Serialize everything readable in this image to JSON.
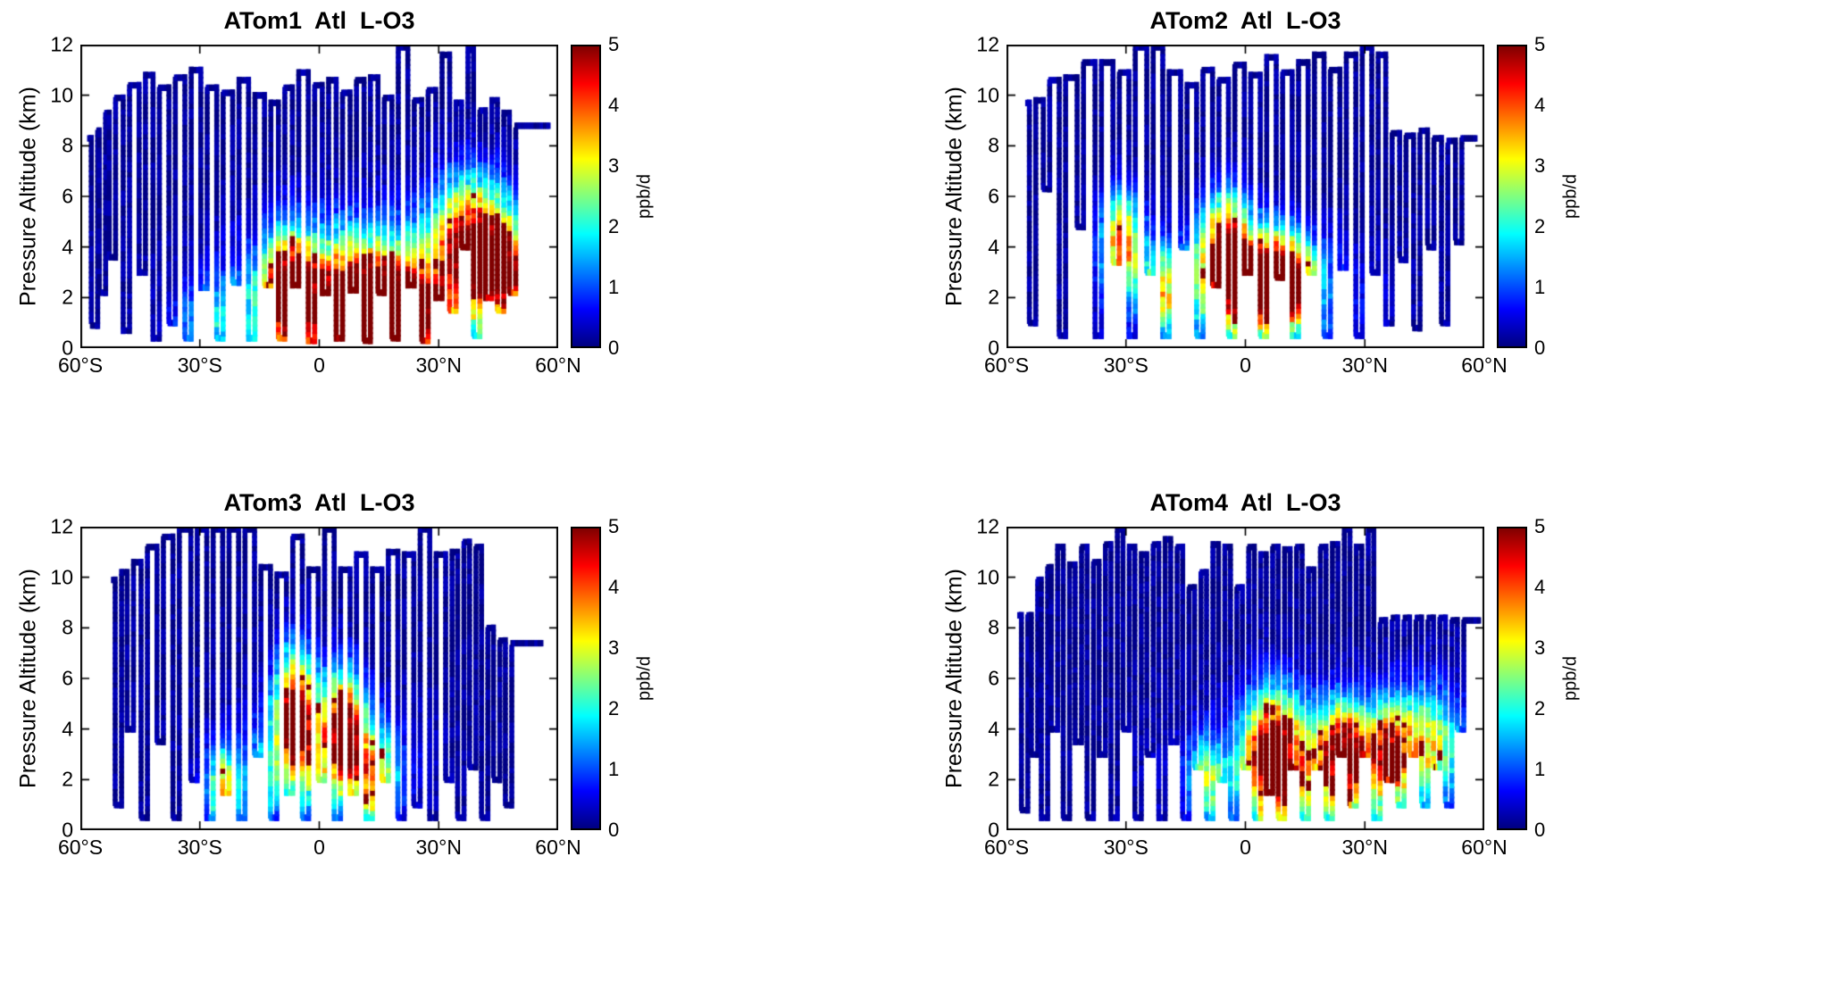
{
  "axes_note": "four curtain plots of ozone loss rate along ATom flight tracks",
  "chart_data": [
    {
      "type": "heatmap",
      "title": "ATom1  Atl  L-O3",
      "xlabel": "",
      "ylabel": "Pressure Altitude (km)",
      "xlim": [
        -60,
        60
      ],
      "ylim": [
        0,
        12
      ],
      "x_tick_values": [
        -60,
        -30,
        0,
        30,
        60
      ],
      "x_tick_labels": [
        "60°S",
        "30°S",
        "0",
        "30°N",
        "60°N"
      ],
      "y_tick_values": [
        0,
        2,
        4,
        6,
        8,
        10,
        12
      ],
      "y_tick_labels": [
        "0",
        "2",
        "4",
        "6",
        "8",
        "10",
        "12"
      ],
      "colorbar": {
        "min": 0,
        "max": 5,
        "tick_values": [
          0,
          1,
          2,
          3,
          4,
          5
        ],
        "tick_labels": [
          "0",
          "1",
          "2",
          "3",
          "4",
          "5"
        ],
        "label": "ppb/d",
        "colormap": "jet"
      },
      "flight_track": {
        "start": [
          -58,
          8.3
        ],
        "end": [
          58,
          8.9
        ],
        "dips": [
          [
            -56.5,
            0.9,
            8.6
          ],
          [
            -54.5,
            2.2,
            9.3
          ],
          [
            -52,
            3.6,
            9.9
          ],
          [
            -48.5,
            0.7,
            10.4
          ],
          [
            -44.5,
            3,
            10.8
          ],
          [
            -41,
            0.4,
            10.3
          ],
          [
            -37,
            1,
            10.7
          ],
          [
            -33,
            0.4,
            11
          ],
          [
            -29,
            2.4,
            10.3
          ],
          [
            -25,
            0.4,
            10.1
          ],
          [
            -21,
            2.6,
            10.6
          ],
          [
            -17,
            0.4,
            10
          ],
          [
            -13,
            2.5,
            9.7
          ],
          [
            -9.5,
            0.4,
            10.3
          ],
          [
            -6,
            2.5,
            10.9
          ],
          [
            -2,
            0.3,
            10.4
          ],
          [
            1.5,
            2.2,
            10.6
          ],
          [
            5,
            0.4,
            10.1
          ],
          [
            8.5,
            2.3,
            10.6
          ],
          [
            12,
            0.3,
            10.7
          ],
          [
            15.5,
            2.2,
            9.9
          ],
          [
            19,
            0.4,
            11.9
          ],
          [
            23,
            2.5,
            9.8
          ],
          [
            26.5,
            0.3,
            10.2
          ],
          [
            30,
            2,
            11.6
          ],
          [
            33.5,
            1.5,
            9.7
          ],
          [
            36.5,
            4,
            11.8
          ],
          [
            39.5,
            0.5,
            9.4
          ],
          [
            42.5,
            2,
            9.8
          ],
          [
            45.5,
            1.5,
            9.3
          ],
          [
            48.5,
            2.2,
            8.8
          ]
        ]
      },
      "value_field": {
        "base": 0.12,
        "seed": 11,
        "hotspots": [
          [
            8,
            20,
            1.4,
            2.6,
            4.4
          ],
          [
            38,
            9,
            4.2,
            2.4,
            4.6
          ],
          [
            -8,
            5,
            2.6,
            2,
            3.4
          ],
          [
            20,
            9,
            1,
            1.8,
            3.6
          ],
          [
            46,
            6,
            3,
            2,
            3.9
          ],
          [
            15,
            32,
            2,
            2.8,
            1.8
          ],
          [
            -28,
            8,
            1,
            1.5,
            1.3
          ]
        ]
      }
    },
    {
      "type": "heatmap",
      "title": "ATom2  Atl  L-O3",
      "xlabel": "",
      "ylabel": "Pressure Altitude (km)",
      "xlim": [
        -60,
        60
      ],
      "ylim": [
        0,
        12
      ],
      "x_tick_values": [
        -60,
        -30,
        0,
        30,
        60
      ],
      "x_tick_labels": [
        "60°S",
        "30°S",
        "0",
        "30°N",
        "60°N"
      ],
      "y_tick_values": [
        0,
        2,
        4,
        6,
        8,
        10,
        12
      ],
      "y_tick_labels": [
        "0",
        "2",
        "4",
        "6",
        "8",
        "10",
        "12"
      ],
      "colorbar": {
        "min": 0,
        "max": 5,
        "tick_values": [
          0,
          1,
          2,
          3,
          4,
          5
        ],
        "tick_labels": [
          "0",
          "1",
          "2",
          "3",
          "4",
          "5"
        ],
        "label": "ppb/d",
        "colormap": "jet"
      },
      "flight_track": {
        "start": [
          -55,
          9.7
        ],
        "end": [
          58,
          8.2
        ],
        "dips": [
          [
            -53.5,
            1,
            9.8
          ],
          [
            -50,
            6.3,
            10.6
          ],
          [
            -46,
            0.5,
            10.7
          ],
          [
            -41.5,
            4.8,
            11.3
          ],
          [
            -37,
            0.5,
            11.3
          ],
          [
            -32.5,
            3.4,
            10.9
          ],
          [
            -28.5,
            0.5,
            11.9
          ],
          [
            -24,
            3,
            11.9
          ],
          [
            -20,
            0.5,
            10.9
          ],
          [
            -15.5,
            4,
            10.4
          ],
          [
            -11.5,
            0.5,
            11
          ],
          [
            -7.5,
            2.5,
            10.6
          ],
          [
            -3.5,
            0.5,
            11.2
          ],
          [
            0.5,
            3,
            10.8
          ],
          [
            4.5,
            0.5,
            11.5
          ],
          [
            8.5,
            2.8,
            10.9
          ],
          [
            12.5,
            0.5,
            11.3
          ],
          [
            16.5,
            3,
            11.6
          ],
          [
            20.5,
            0.5,
            11
          ],
          [
            24.5,
            3.2,
            11.6
          ],
          [
            28.5,
            0.5,
            11.9
          ],
          [
            32.5,
            3,
            11.6
          ],
          [
            36,
            1,
            8.5
          ],
          [
            39.5,
            3.5,
            8.4
          ],
          [
            43,
            0.8,
            8.6
          ],
          [
            46.5,
            4,
            8.3
          ],
          [
            50,
            1,
            8.2
          ],
          [
            53.5,
            4.2,
            8.3
          ]
        ]
      },
      "value_field": {
        "base": 0.12,
        "seed": 22,
        "hotspots": [
          [
            -31,
            5,
            4.2,
            1.9,
            3.6
          ],
          [
            -5,
            6,
            3.6,
            2.3,
            4.8
          ],
          [
            5,
            7,
            2.6,
            1.8,
            4.4
          ],
          [
            12,
            6,
            2.6,
            1.6,
            3.4
          ],
          [
            -1,
            26,
            2.1,
            2.4,
            1.7
          ],
          [
            -21,
            4,
            2.2,
            1.6,
            2.4
          ]
        ]
      }
    },
    {
      "type": "heatmap",
      "title": "ATom3  Atl  L-O3",
      "xlabel": "",
      "ylabel": "Pressure Altitude (km)",
      "xlim": [
        -60,
        60
      ],
      "ylim": [
        0,
        12
      ],
      "x_tick_values": [
        -60,
        -30,
        0,
        30,
        60
      ],
      "x_tick_labels": [
        "60°S",
        "30°S",
        "0",
        "30°N",
        "60°N"
      ],
      "y_tick_values": [
        0,
        2,
        4,
        6,
        8,
        10,
        12
      ],
      "y_tick_labels": [
        "0",
        "2",
        "4",
        "6",
        "8",
        "10",
        "12"
      ],
      "colorbar": {
        "min": 0,
        "max": 5,
        "tick_values": [
          0,
          1,
          2,
          3,
          4,
          5
        ],
        "tick_labels": [
          "0",
          "1",
          "2",
          "3",
          "4",
          "5"
        ],
        "label": "ppb/d",
        "colormap": "jet"
      },
      "flight_track": {
        "start": [
          -52,
          9.9
        ],
        "end": [
          56,
          7.4
        ],
        "dips": [
          [
            -50.5,
            1,
            10.2
          ],
          [
            -47.5,
            4,
            10.6
          ],
          [
            -44,
            0.5,
            11.2
          ],
          [
            -40,
            3.5,
            11.6
          ],
          [
            -36,
            0.5,
            11.9
          ],
          [
            -31.5,
            2,
            11.9
          ],
          [
            -27.5,
            0.5,
            11.9
          ],
          [
            -23.5,
            1.5,
            11.9
          ],
          [
            -19.5,
            0.5,
            11.9
          ],
          [
            -15.5,
            3,
            10.4
          ],
          [
            -11.5,
            0.5,
            10.1
          ],
          [
            -7.5,
            1.5,
            11.6
          ],
          [
            -3.5,
            0.5,
            10.3
          ],
          [
            0.5,
            2,
            11.9
          ],
          [
            4.5,
            0.5,
            10.3
          ],
          [
            8.5,
            1.5,
            10.9
          ],
          [
            12.5,
            0.5,
            10.3
          ],
          [
            16.5,
            2,
            11
          ],
          [
            20.5,
            0.5,
            10.9
          ],
          [
            24.5,
            1,
            11.9
          ],
          [
            28.5,
            0.5,
            10.9
          ],
          [
            32.5,
            2,
            11
          ],
          [
            35.5,
            0.5,
            11.4
          ],
          [
            38.5,
            2.5,
            11.2
          ],
          [
            41.5,
            0.5,
            8
          ],
          [
            44.5,
            2,
            7.5
          ],
          [
            47.5,
            1,
            7.4
          ]
        ]
      },
      "value_field": {
        "base": 0.12,
        "seed": 33,
        "hotspots": [
          [
            -6,
            5,
            4.6,
            2.4,
            5
          ],
          [
            6,
            5,
            4,
            2.2,
            4.6
          ],
          [
            -24,
            4,
            1.6,
            1.5,
            3
          ],
          [
            14,
            5,
            2,
            1.8,
            2.8
          ],
          [
            0,
            20,
            2.6,
            2.4,
            1.6
          ],
          [
            -15,
            3,
            1.5,
            1.3,
            2
          ]
        ]
      }
    },
    {
      "type": "heatmap",
      "title": "ATom4  Atl  L-O3",
      "xlabel": "",
      "ylabel": "Pressure Altitude (km)",
      "xlim": [
        -60,
        60
      ],
      "ylim": [
        0,
        12
      ],
      "x_tick_values": [
        -60,
        -30,
        0,
        30,
        60
      ],
      "x_tick_labels": [
        "60°S",
        "30°S",
        "0",
        "30°N",
        "60°N"
      ],
      "y_tick_values": [
        0,
        2,
        4,
        6,
        8,
        10,
        12
      ],
      "y_tick_labels": [
        "0",
        "2",
        "4",
        "6",
        "8",
        "10",
        "12"
      ],
      "colorbar": {
        "min": 0,
        "max": 5,
        "tick_values": [
          0,
          1,
          2,
          3,
          4,
          5
        ],
        "tick_labels": [
          "0",
          "1",
          "2",
          "3",
          "4",
          "5"
        ],
        "label": "ppb/d",
        "colormap": "jet"
      },
      "flight_track": {
        "start": [
          -57,
          8.5
        ],
        "end": [
          59,
          8.2
        ],
        "dips": [
          [
            -55.5,
            0.8,
            8.5
          ],
          [
            -53,
            3,
            9.9
          ],
          [
            -50.5,
            0.5,
            10.4
          ],
          [
            -48,
            4,
            11.2
          ],
          [
            -45,
            0.5,
            10.5
          ],
          [
            -42,
            3.5,
            11.2
          ],
          [
            -39,
            0.5,
            10.6
          ],
          [
            -36,
            3,
            11.3
          ],
          [
            -33,
            0.5,
            11.9
          ],
          [
            -30,
            4,
            11.2
          ],
          [
            -27,
            0.5,
            10.9
          ],
          [
            -24,
            3,
            11.3
          ],
          [
            -21,
            0.5,
            11.5
          ],
          [
            -18,
            3.5,
            11.2
          ],
          [
            -15,
            0.5,
            9.6
          ],
          [
            -12,
            2.5,
            10.2
          ],
          [
            -9,
            0.5,
            11.3
          ],
          [
            -6,
            2,
            11.2
          ],
          [
            -3,
            0.5,
            9.6
          ],
          [
            0,
            2.5,
            11.2
          ],
          [
            3,
            0.5,
            10.9
          ],
          [
            6,
            1.5,
            11.2
          ],
          [
            9,
            0.5,
            11.1
          ],
          [
            12,
            2.5,
            11.2
          ],
          [
            15,
            0.5,
            10.3
          ],
          [
            18,
            2.5,
            11.2
          ],
          [
            21,
            0.5,
            11.3
          ],
          [
            24,
            3,
            11.9
          ],
          [
            27,
            1,
            11.2
          ],
          [
            30,
            3,
            11.9
          ],
          [
            33,
            0.5,
            8.3
          ],
          [
            36,
            2,
            8.4
          ],
          [
            39,
            1,
            8.4
          ],
          [
            42,
            3,
            8.4
          ],
          [
            45,
            1,
            8.4
          ],
          [
            48,
            2.5,
            8.4
          ],
          [
            51,
            1,
            8.3
          ],
          [
            54,
            4,
            8.3
          ]
        ]
      },
      "value_field": {
        "base": 0.12,
        "seed": 44,
        "hotspots": [
          [
            7,
            7,
            3,
            2.4,
            4.8
          ],
          [
            25,
            7,
            3,
            2,
            4.2
          ],
          [
            45,
            9,
            3.4,
            2.2,
            2.7
          ],
          [
            -10,
            4,
            2,
            1.5,
            2.2
          ],
          [
            18,
            28,
            2,
            2.6,
            1.8
          ],
          [
            36,
            4,
            3,
            1.8,
            3
          ]
        ]
      }
    }
  ]
}
